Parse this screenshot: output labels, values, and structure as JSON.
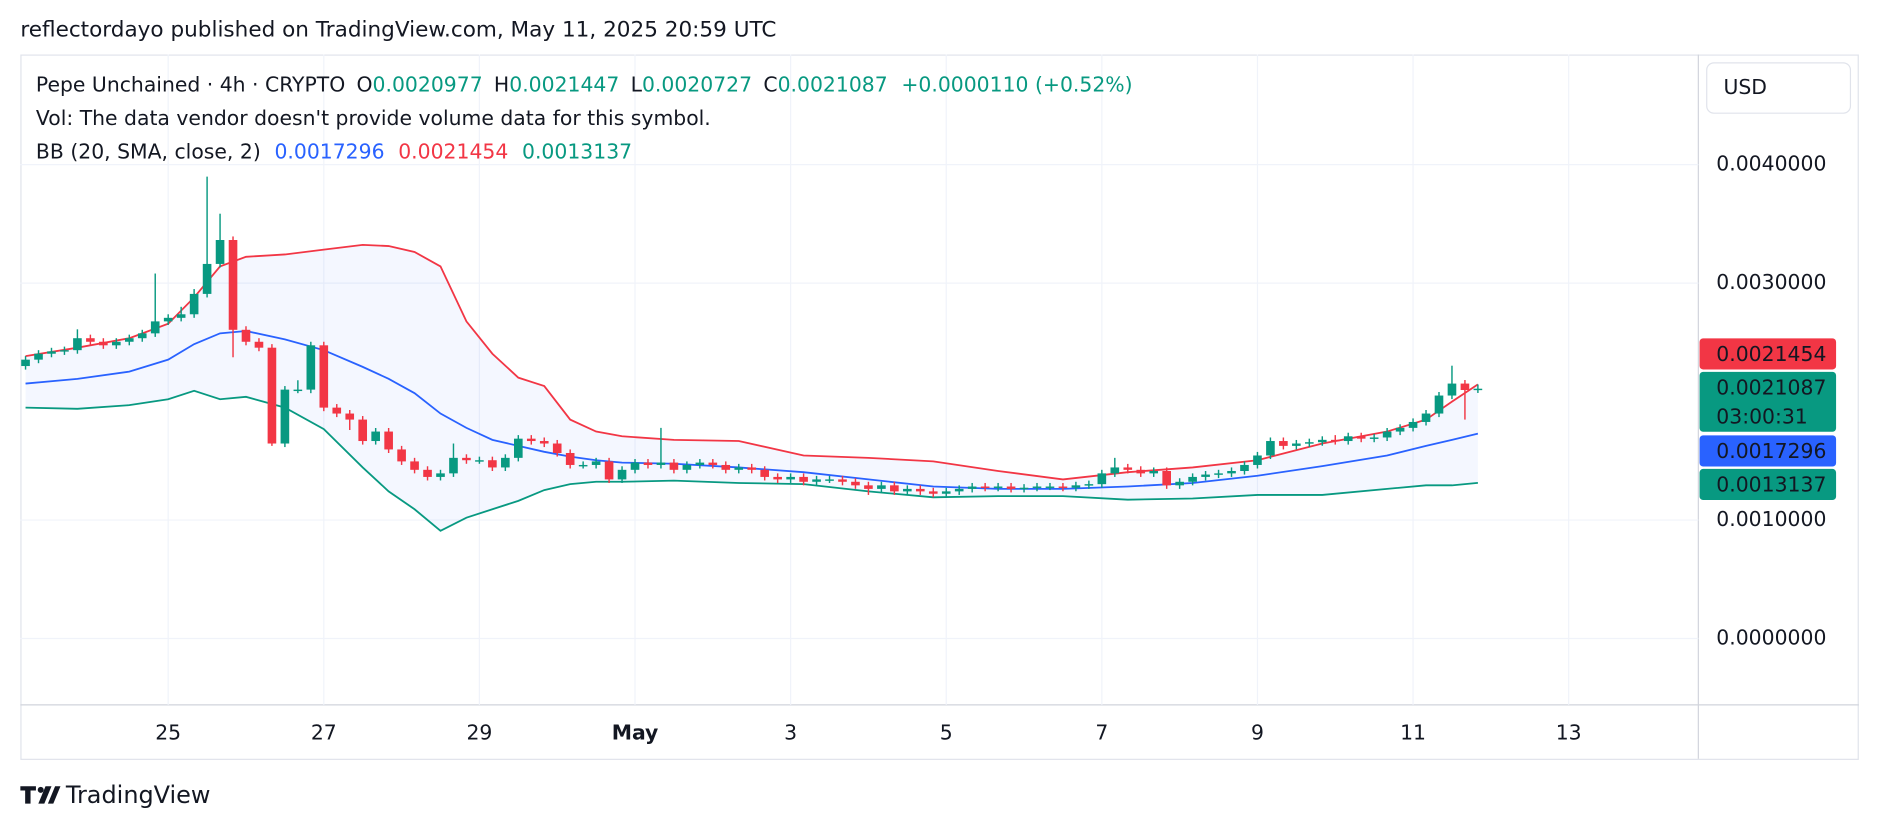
{
  "chart_data": {
    "type": "candlestick",
    "published": "reflectordayo published on TradingView.com, May 11, 2025 20:59 UTC",
    "symbol": "Pepe Unchained · 4h · CRYPTO",
    "ohlc_labels": [
      "O",
      "H",
      "L",
      "C"
    ],
    "change": "+0.0000110 (+0.52%)",
    "volume_note": "Vol: The data vendor doesn't provide volume data for this symbol.",
    "indicator": "BB (20, SMA, close, 2)",
    "currency": "USD",
    "countdown": "03:00:31",
    "brand": "TradingView",
    "up_color": "#089981",
    "down_color": "#f23645",
    "grid": true,
    "xlim": [
      -0.4,
      129
    ],
    "xticks": [
      {
        "value": 11,
        "label": "25"
      },
      {
        "value": 23,
        "label": "27"
      },
      {
        "value": 35,
        "label": "29"
      },
      {
        "value": 47,
        "label": "May"
      },
      {
        "value": 59,
        "label": "3"
      },
      {
        "value": 71,
        "label": "5"
      },
      {
        "value": 83,
        "label": "7"
      },
      {
        "value": 95,
        "label": "9"
      },
      {
        "value": 107,
        "label": "11"
      },
      {
        "value": 119,
        "label": "13"
      }
    ],
    "ylim": [
      -0.00056,
      0.00493
    ],
    "yticks": [
      {
        "value": 0.004,
        "label": "0.0040000"
      },
      {
        "value": 0.003,
        "label": "0.0030000"
      },
      {
        "value": 0.001,
        "label": "0.0010000"
      },
      {
        "value": 0,
        "label": "0.0000000"
      }
    ],
    "candles": {
      "open": [
        0.0023,
        0.002354,
        0.002404,
        0.002424,
        0.002434,
        0.002535,
        0.002505,
        0.002475,
        0.002505,
        0.002535,
        0.002576,
        0.002677,
        0.002707,
        0.002737,
        0.002909,
        0.003162,
        0.003364,
        0.002606,
        0.002505,
        0.002455,
        0.001646,
        0.002101,
        0.002101,
        0.002475,
        0.001949,
        0.001899,
        0.001848,
        0.001667,
        0.001747,
        0.001596,
        0.001495,
        0.001424,
        0.001364,
        0.001394,
        0.001525,
        0.001505,
        0.001505,
        0.001444,
        0.001525,
        0.001687,
        0.001667,
        0.001646,
        0.001566,
        0.001465,
        0.001465,
        0.001495,
        0.001343,
        0.001424,
        0.001485,
        0.001465,
        0.001485,
        0.001424,
        0.001465,
        0.001485,
        0.001465,
        0.001424,
        0.001444,
        0.001424,
        0.001364,
        0.001343,
        0.001364,
        0.001323,
        0.001343,
        0.001343,
        0.001323,
        0.001293,
        0.001263,
        0.001293,
        0.001242,
        0.001263,
        0.001242,
        0.001222,
        0.001242,
        0.001263,
        0.001283,
        0.001273,
        0.001283,
        0.001263,
        0.001273,
        0.001283,
        0.001283,
        0.001273,
        0.001293,
        0.001303,
        0.001394,
        0.001444,
        0.001424,
        0.001394,
        0.001414,
        0.001293,
        0.001323,
        0.001364,
        0.001384,
        0.001394,
        0.001414,
        0.001465,
        0.001545,
        0.001667,
        0.001626,
        0.001646,
        0.001657,
        0.001677,
        0.001667,
        0.001707,
        0.001687,
        0.001697,
        0.001747,
        0.001778,
        0.001828,
        0.001899,
        0.002051,
        0.002152,
        0.0020977
      ],
      "high": [
        0.002384,
        0.002434,
        0.002454,
        0.002464,
        0.00261,
        0.002565,
        0.002535,
        0.002535,
        0.002565,
        0.002606,
        0.003081,
        0.002737,
        0.0028,
        0.00295,
        0.003899,
        0.003586,
        0.003394,
        0.002636,
        0.002535,
        0.002485,
        0.002131,
        0.00218,
        0.002505,
        0.002505,
        0.001979,
        0.001929,
        0.001878,
        0.001777,
        0.001777,
        0.001626,
        0.001525,
        0.001454,
        0.001424,
        0.001646,
        0.001555,
        0.001535,
        0.001535,
        0.001555,
        0.001717,
        0.001717,
        0.001697,
        0.001676,
        0.001596,
        0.001495,
        0.001525,
        0.001525,
        0.001454,
        0.001515,
        0.001515,
        0.001778,
        0.001515,
        0.001495,
        0.001515,
        0.001515,
        0.001495,
        0.001474,
        0.001474,
        0.001454,
        0.001394,
        0.001394,
        0.001394,
        0.001373,
        0.001373,
        0.001373,
        0.001353,
        0.001323,
        0.001323,
        0.001323,
        0.001293,
        0.001293,
        0.001272,
        0.001272,
        0.001293,
        0.001313,
        0.001313,
        0.001313,
        0.001313,
        0.001303,
        0.001313,
        0.001313,
        0.001313,
        0.001323,
        0.001333,
        0.001424,
        0.001525,
        0.001474,
        0.001454,
        0.001444,
        0.001444,
        0.001353,
        0.001394,
        0.001414,
        0.001424,
        0.001444,
        0.001495,
        0.001575,
        0.001697,
        0.001697,
        0.001676,
        0.001687,
        0.001707,
        0.001717,
        0.001737,
        0.001737,
        0.001727,
        0.001777,
        0.001808,
        0.001858,
        0.001929,
        0.002081,
        0.002303,
        0.002182,
        0.0021447
      ],
      "low": [
        0.00227,
        0.002324,
        0.002374,
        0.002394,
        0.002404,
        0.002475,
        0.002445,
        0.002445,
        0.002475,
        0.002505,
        0.002546,
        0.002647,
        0.002677,
        0.002707,
        0.002879,
        0.003132,
        0.002374,
        0.002475,
        0.002425,
        0.001626,
        0.001616,
        0.002071,
        0.002071,
        0.001919,
        0.001869,
        0.00176,
        0.001637,
        0.001637,
        0.001566,
        0.001465,
        0.001394,
        0.001334,
        0.001334,
        0.001364,
        0.001475,
        0.001475,
        0.001414,
        0.001414,
        0.001495,
        0.001637,
        0.001616,
        0.001536,
        0.001435,
        0.001435,
        0.001435,
        0.001313,
        0.001313,
        0.001394,
        0.001435,
        0.001435,
        0.001394,
        0.001394,
        0.001435,
        0.001435,
        0.001394,
        0.001394,
        0.001394,
        0.001334,
        0.001313,
        0.001313,
        0.001293,
        0.001293,
        0.001313,
        0.001293,
        0.001263,
        0.001212,
        0.001233,
        0.001212,
        0.001212,
        0.001212,
        0.001192,
        0.001192,
        0.001212,
        0.001233,
        0.001243,
        0.001243,
        0.001233,
        0.001233,
        0.001243,
        0.001253,
        0.001243,
        0.001243,
        0.001263,
        0.001273,
        0.001364,
        0.001394,
        0.001364,
        0.001364,
        0.001263,
        0.001263,
        0.001293,
        0.001334,
        0.001354,
        0.001364,
        0.001384,
        0.001435,
        0.001515,
        0.001596,
        0.001596,
        0.001616,
        0.001627,
        0.001637,
        0.001637,
        0.001657,
        0.001657,
        0.001667,
        0.001717,
        0.001748,
        0.001798,
        0.001869,
        0.002021,
        0.001848,
        0.0020727
      ],
      "close": [
        0.002354,
        0.002404,
        0.002424,
        0.002434,
        0.002535,
        0.002505,
        0.002475,
        0.002505,
        0.002535,
        0.002576,
        0.002677,
        0.002707,
        0.002737,
        0.002909,
        0.003162,
        0.003364,
        0.002606,
        0.002505,
        0.002455,
        0.001646,
        0.002101,
        0.002101,
        0.002475,
        0.001949,
        0.001899,
        0.001848,
        0.001667,
        0.001747,
        0.001596,
        0.001495,
        0.001424,
        0.001364,
        0.001394,
        0.001525,
        0.001505,
        0.001505,
        0.001444,
        0.001525,
        0.001687,
        0.001667,
        0.001646,
        0.001566,
        0.001465,
        0.001465,
        0.001495,
        0.001343,
        0.001424,
        0.001485,
        0.001465,
        0.001485,
        0.001424,
        0.001465,
        0.001485,
        0.001465,
        0.001424,
        0.001444,
        0.001424,
        0.001364,
        0.001343,
        0.001364,
        0.001323,
        0.001343,
        0.001343,
        0.001323,
        0.001293,
        0.001263,
        0.001293,
        0.001242,
        0.001263,
        0.001242,
        0.001222,
        0.001242,
        0.001263,
        0.001283,
        0.001273,
        0.001283,
        0.001263,
        0.001273,
        0.001283,
        0.001283,
        0.001273,
        0.001293,
        0.001303,
        0.001394,
        0.001444,
        0.001424,
        0.001394,
        0.001414,
        0.001293,
        0.001323,
        0.001364,
        0.001384,
        0.001394,
        0.001414,
        0.001465,
        0.001545,
        0.001667,
        0.001626,
        0.001646,
        0.001657,
        0.001677,
        0.001667,
        0.001707,
        0.001687,
        0.001697,
        0.001747,
        0.001778,
        0.001828,
        0.001899,
        0.002051,
        0.002152,
        0.0020977,
        0.0021087
      ]
    },
    "series": [
      {
        "color": "#2962ff",
        "x": [
          0,
          4,
          8,
          11,
          13,
          15,
          17,
          20,
          23,
          26,
          28,
          30,
          32,
          34,
          36,
          38,
          40,
          42,
          44,
          46,
          50,
          55,
          60,
          65,
          70,
          75,
          80,
          85,
          90,
          95,
          100,
          105,
          108,
          110,
          112
        ],
        "values": [
          0.002152,
          0.002192,
          0.002253,
          0.002354,
          0.002485,
          0.002576,
          0.002596,
          0.002525,
          0.002434,
          0.002293,
          0.002192,
          0.002071,
          0.001899,
          0.001778,
          0.001677,
          0.001626,
          0.001576,
          0.001535,
          0.001505,
          0.001485,
          0.001475,
          0.001444,
          0.001404,
          0.001343,
          0.001283,
          0.001263,
          0.001263,
          0.001283,
          0.001313,
          0.001374,
          0.001455,
          0.001545,
          0.001626,
          0.001677,
          0.0017296
        ]
      },
      {
        "color": "#f23645",
        "x": [
          0,
          4,
          8,
          11,
          13,
          15,
          17,
          20,
          23,
          26,
          28,
          30,
          32,
          34,
          36,
          38,
          40,
          42,
          44,
          46,
          50,
          55,
          60,
          65,
          70,
          75,
          80,
          85,
          90,
          95,
          100,
          105,
          108,
          110,
          112
        ],
        "values": [
          0.002384,
          0.002455,
          0.002535,
          0.002657,
          0.002879,
          0.003141,
          0.003222,
          0.003242,
          0.003283,
          0.003323,
          0.003313,
          0.003263,
          0.003141,
          0.002677,
          0.002404,
          0.002202,
          0.002131,
          0.001848,
          0.001747,
          0.001707,
          0.001677,
          0.001667,
          0.001545,
          0.001525,
          0.001495,
          0.001414,
          0.001343,
          0.001404,
          0.001444,
          0.001505,
          0.001646,
          0.001747,
          0.001848,
          0.002,
          0.0021454
        ]
      },
      {
        "color": "#089981",
        "x": [
          0,
          4,
          8,
          11,
          13,
          15,
          17,
          20,
          23,
          26,
          28,
          30,
          32,
          34,
          36,
          38,
          40,
          42,
          44,
          46,
          50,
          55,
          60,
          65,
          70,
          75,
          80,
          85,
          90,
          95,
          100,
          105,
          108,
          110,
          112
        ],
        "values": [
          0.001949,
          0.001939,
          0.00197,
          0.00202,
          0.002091,
          0.00202,
          0.00204,
          0.001949,
          0.001768,
          0.001444,
          0.001242,
          0.001091,
          0.000909,
          0.00102,
          0.001091,
          0.001162,
          0.001253,
          0.001303,
          0.001323,
          0.001323,
          0.001333,
          0.001313,
          0.001303,
          0.001242,
          0.001192,
          0.001202,
          0.001202,
          0.001172,
          0.001182,
          0.001212,
          0.001212,
          0.001263,
          0.001293,
          0.001293,
          0.0013137
        ]
      }
    ]
  }
}
